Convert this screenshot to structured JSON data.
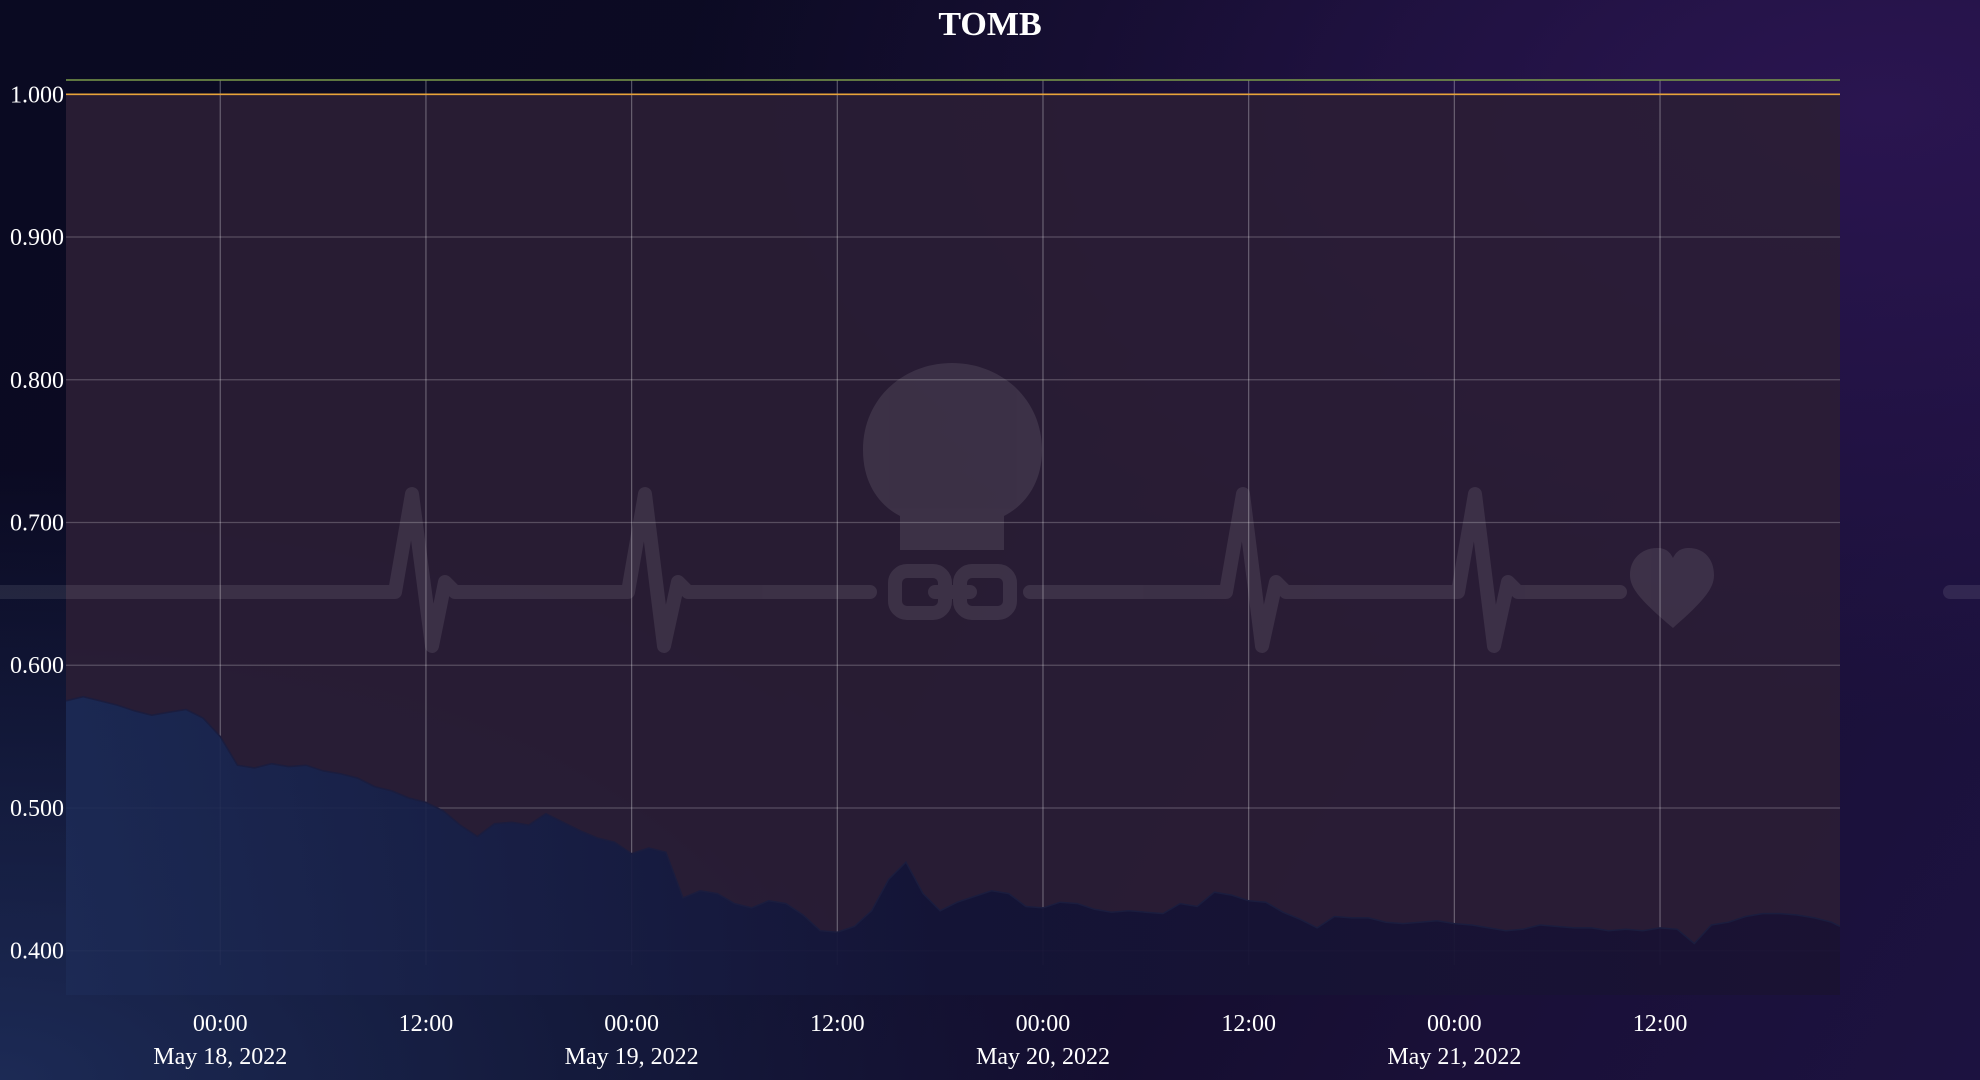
{
  "chart_data": {
    "type": "area",
    "title": "TOMB",
    "xlabel": "",
    "ylabel": "",
    "x_range": [
      "2022-05-17T15:00",
      "2022-05-21T22:30"
    ],
    "ylim": [
      0.39,
      1.01
    ],
    "grid": true,
    "y_ticks": [
      0.4,
      0.5,
      0.6,
      0.7,
      0.8,
      0.9,
      1.0
    ],
    "y_tick_labels": [
      "0.400",
      "0.500",
      "0.600",
      "0.700",
      "0.800",
      "0.900",
      "1.000"
    ],
    "x_ticks": [
      {
        "t": "2022-05-18T00:00",
        "time": "00:00",
        "date": "May 18, 2022"
      },
      {
        "t": "2022-05-18T12:00",
        "time": "12:00",
        "date": ""
      },
      {
        "t": "2022-05-19T00:00",
        "time": "00:00",
        "date": "May 19, 2022"
      },
      {
        "t": "2022-05-19T12:00",
        "time": "12:00",
        "date": ""
      },
      {
        "t": "2022-05-20T00:00",
        "time": "00:00",
        "date": "May 20, 2022"
      },
      {
        "t": "2022-05-20T12:00",
        "time": "12:00",
        "date": ""
      },
      {
        "t": "2022-05-21T00:00",
        "time": "00:00",
        "date": "May 21, 2022"
      },
      {
        "t": "2022-05-21T12:00",
        "time": "12:00",
        "date": ""
      }
    ],
    "reference_lines": [
      {
        "value": 1.0,
        "color": "#e8a33a"
      },
      {
        "value": 1.01,
        "color": "#7a9a4a"
      }
    ],
    "series": [
      {
        "fill_color": "#1b1d3e",
        "gap_fill_color": "#2b1e35",
        "points": [
          [
            "2022-05-17T15:00",
            0.575
          ],
          [
            "2022-05-17T16:00",
            0.578
          ],
          [
            "2022-05-17T17:00",
            0.575
          ],
          [
            "2022-05-17T18:00",
            0.572
          ],
          [
            "2022-05-17T19:00",
            0.568
          ],
          [
            "2022-05-17T20:00",
            0.565
          ],
          [
            "2022-05-17T21:00",
            0.567
          ],
          [
            "2022-05-17T22:00",
            0.569
          ],
          [
            "2022-05-17T23:00",
            0.563
          ],
          [
            "2022-05-18T00:00",
            0.55
          ],
          [
            "2022-05-18T01:00",
            0.53
          ],
          [
            "2022-05-18T02:00",
            0.528
          ],
          [
            "2022-05-18T03:00",
            0.531
          ],
          [
            "2022-05-18T04:00",
            0.529
          ],
          [
            "2022-05-18T05:00",
            0.53
          ],
          [
            "2022-05-18T06:00",
            0.526
          ],
          [
            "2022-05-18T07:00",
            0.524
          ],
          [
            "2022-05-18T08:00",
            0.521
          ],
          [
            "2022-05-18T09:00",
            0.515
          ],
          [
            "2022-05-18T10:00",
            0.512
          ],
          [
            "2022-05-18T11:00",
            0.507
          ],
          [
            "2022-05-18T12:00",
            0.504
          ],
          [
            "2022-05-18T13:00",
            0.498
          ],
          [
            "2022-05-18T14:00",
            0.488
          ],
          [
            "2022-05-18T15:00",
            0.48
          ],
          [
            "2022-05-18T16:00",
            0.489
          ],
          [
            "2022-05-18T17:00",
            0.49
          ],
          [
            "2022-05-18T18:00",
            0.488
          ],
          [
            "2022-05-18T19:00",
            0.496
          ],
          [
            "2022-05-18T20:00",
            0.49
          ],
          [
            "2022-05-18T21:00",
            0.484
          ],
          [
            "2022-05-18T22:00",
            0.479
          ],
          [
            "2022-05-18T23:00",
            0.476
          ],
          [
            "2022-05-19T00:00",
            0.468
          ],
          [
            "2022-05-19T01:00",
            0.472
          ],
          [
            "2022-05-19T02:00",
            0.469
          ],
          [
            "2022-05-19T03:00",
            0.437
          ],
          [
            "2022-05-19T04:00",
            0.442
          ],
          [
            "2022-05-19T05:00",
            0.44
          ],
          [
            "2022-05-19T06:00",
            0.433
          ],
          [
            "2022-05-19T07:00",
            0.43
          ],
          [
            "2022-05-19T08:00",
            0.435
          ],
          [
            "2022-05-19T09:00",
            0.433
          ],
          [
            "2022-05-19T10:00",
            0.425
          ],
          [
            "2022-05-19T11:00",
            0.414
          ],
          [
            "2022-05-19T12:00",
            0.413
          ],
          [
            "2022-05-19T13:00",
            0.417
          ],
          [
            "2022-05-19T14:00",
            0.428
          ],
          [
            "2022-05-19T15:00",
            0.45
          ],
          [
            "2022-05-19T16:00",
            0.462
          ],
          [
            "2022-05-19T17:00",
            0.44
          ],
          [
            "2022-05-19T18:00",
            0.428
          ],
          [
            "2022-05-19T19:00",
            0.434
          ],
          [
            "2022-05-19T20:00",
            0.438
          ],
          [
            "2022-05-19T21:00",
            0.442
          ],
          [
            "2022-05-19T22:00",
            0.44
          ],
          [
            "2022-05-19T23:00",
            0.431
          ],
          [
            "2022-05-20T00:00",
            0.43
          ],
          [
            "2022-05-20T01:00",
            0.434
          ],
          [
            "2022-05-20T02:00",
            0.433
          ],
          [
            "2022-05-20T03:00",
            0.429
          ],
          [
            "2022-05-20T04:00",
            0.427
          ],
          [
            "2022-05-20T05:00",
            0.428
          ],
          [
            "2022-05-20T06:00",
            0.427
          ],
          [
            "2022-05-20T07:00",
            0.426
          ],
          [
            "2022-05-20T08:00",
            0.433
          ],
          [
            "2022-05-20T09:00",
            0.431
          ],
          [
            "2022-05-20T10:00",
            0.441
          ],
          [
            "2022-05-20T11:00",
            0.439
          ],
          [
            "2022-05-20T12:00",
            0.435
          ],
          [
            "2022-05-20T13:00",
            0.434
          ],
          [
            "2022-05-20T14:00",
            0.427
          ],
          [
            "2022-05-20T15:00",
            0.422
          ],
          [
            "2022-05-20T16:00",
            0.416
          ],
          [
            "2022-05-20T17:00",
            0.424
          ],
          [
            "2022-05-20T18:00",
            0.423
          ],
          [
            "2022-05-20T19:00",
            0.423
          ],
          [
            "2022-05-20T20:00",
            0.42
          ],
          [
            "2022-05-20T21:00",
            0.419
          ],
          [
            "2022-05-20T22:00",
            0.42
          ],
          [
            "2022-05-20T23:00",
            0.421
          ],
          [
            "2022-05-21T00:00",
            0.419
          ],
          [
            "2022-05-21T01:00",
            0.418
          ],
          [
            "2022-05-21T02:00",
            0.416
          ],
          [
            "2022-05-21T03:00",
            0.414
          ],
          [
            "2022-05-21T04:00",
            0.415
          ],
          [
            "2022-05-21T05:00",
            0.418
          ],
          [
            "2022-05-21T06:00",
            0.417
          ],
          [
            "2022-05-21T07:00",
            0.416
          ],
          [
            "2022-05-21T08:00",
            0.416
          ],
          [
            "2022-05-21T09:00",
            0.414
          ],
          [
            "2022-05-21T10:00",
            0.415
          ],
          [
            "2022-05-21T11:00",
            0.414
          ],
          [
            "2022-05-21T12:00",
            0.416
          ],
          [
            "2022-05-21T13:00",
            0.415
          ],
          [
            "2022-05-21T14:00",
            0.405
          ],
          [
            "2022-05-21T15:00",
            0.418
          ],
          [
            "2022-05-21T16:00",
            0.42
          ],
          [
            "2022-05-21T17:00",
            0.424
          ],
          [
            "2022-05-21T18:00",
            0.426
          ],
          [
            "2022-05-21T19:00",
            0.426
          ],
          [
            "2022-05-21T20:00",
            0.425
          ],
          [
            "2022-05-21T21:00",
            0.423
          ],
          [
            "2022-05-21T22:00",
            0.42
          ],
          [
            "2022-05-21T22:30",
            0.417
          ]
        ]
      }
    ]
  }
}
